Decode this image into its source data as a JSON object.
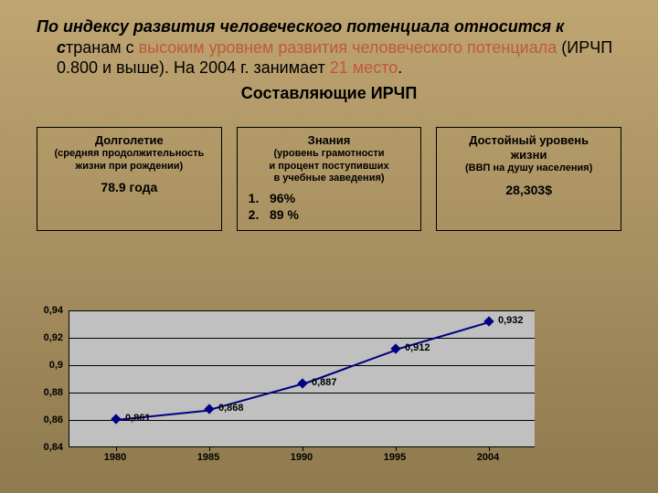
{
  "background": {
    "gradient_from": "#bfa572",
    "gradient_to": "#8f7a4e"
  },
  "paragraph": {
    "lead_italic_bold": "По индексу развития человеческого потенциала относится к с",
    "after_lead": "транам с ",
    "orange1": "высоким уровнем развития человеческого потенциала",
    "mid": " (ИРЧП 0.800 и выше). На 2004 г. занимает ",
    "orange2": "21 место",
    "tail": "."
  },
  "subtitle": "Составляющие ИРЧП",
  "boxes": [
    {
      "title": "Долголетие",
      "sub": "(средняя продолжительность<br>жизни при рождении)",
      "value": "78.9 года",
      "list": null
    },
    {
      "title": "Знания",
      "sub": "(уровень грамотности<br>и процент поступивших<br>в учебные заведения)",
      "value": null,
      "list": [
        "96%",
        "89 %"
      ]
    },
    {
      "title": "Достойный уровень<br>жизни",
      "sub": "(ВВП на душу населения)",
      "value": "28,303$",
      "list": null
    }
  ],
  "chart": {
    "type": "line",
    "plot_bg": "#c0c0c0",
    "grid_color": "#000000",
    "line_color": "#000080",
    "marker_color": "#000080",
    "ylim": [
      0.84,
      0.94
    ],
    "ytick_step": 0.02,
    "yticks": [
      "0,84",
      "0,86",
      "0,88",
      "0,9",
      "0,92",
      "0,94"
    ],
    "categories": [
      "1980",
      "1985",
      "1990",
      "1995",
      "2004"
    ],
    "values": [
      0.861,
      0.868,
      0.887,
      0.912,
      0.932
    ],
    "data_labels": [
      "0,861",
      "0,868",
      "0,887",
      "0,912",
      "0,932"
    ],
    "label_fontsize": 11
  }
}
